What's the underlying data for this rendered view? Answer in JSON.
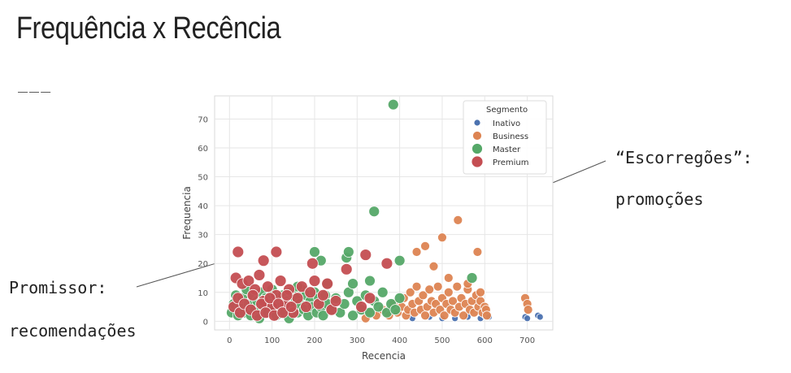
{
  "slide": {
    "title": "Frequência x Recência",
    "title_rule": "___"
  },
  "annotations": {
    "promissor_title": "Promissor:",
    "promissor_subtitle": "recomendações",
    "escorregoes_title": "“Escorregões”:",
    "escorregoes_subtitle": "promoções"
  },
  "colors": {
    "Inativo": "#4c72b0",
    "Business": "#dd8452",
    "Master": "#55a868",
    "Premium": "#c44e52",
    "plot_background": "#ffffff",
    "grid": "#e6e6e6"
  },
  "chart_data": {
    "type": "scatter",
    "title": "",
    "xlabel": "Recencia",
    "ylabel": "Frequencia",
    "xlim": [
      -35,
      760
    ],
    "ylim": [
      -3,
      78
    ],
    "xticks": [
      0,
      100,
      200,
      300,
      400,
      500,
      600,
      700
    ],
    "yticks": [
      0,
      10,
      20,
      30,
      40,
      50,
      60,
      70
    ],
    "grid": true,
    "legend": {
      "title": "Segmento",
      "placement": "top-right",
      "entries": [
        "Inativo",
        "Business",
        "Master",
        "Premium"
      ]
    },
    "series": [
      {
        "name": "Inativo",
        "points": [
          [
            430,
            1
          ],
          [
            470,
            1.5
          ],
          [
            500,
            1
          ],
          [
            530,
            1
          ],
          [
            560,
            1.5
          ],
          [
            590,
            1
          ],
          [
            600,
            2
          ],
          [
            610,
            1.5
          ],
          [
            695,
            1.5
          ],
          [
            700,
            1
          ],
          [
            725,
            2
          ],
          [
            730,
            1.5
          ]
        ]
      },
      {
        "name": "Business",
        "points": [
          [
            320,
            1
          ],
          [
            330,
            3
          ],
          [
            345,
            2
          ],
          [
            360,
            4
          ],
          [
            375,
            2
          ],
          [
            385,
            6
          ],
          [
            395,
            3
          ],
          [
            405,
            5
          ],
          [
            410,
            8
          ],
          [
            415,
            2
          ],
          [
            420,
            4
          ],
          [
            425,
            10
          ],
          [
            430,
            6
          ],
          [
            435,
            3
          ],
          [
            440,
            12
          ],
          [
            445,
            7
          ],
          [
            450,
            4
          ],
          [
            455,
            9
          ],
          [
            460,
            2
          ],
          [
            465,
            5
          ],
          [
            470,
            11
          ],
          [
            475,
            7
          ],
          [
            480,
            3
          ],
          [
            485,
            6
          ],
          [
            490,
            12
          ],
          [
            495,
            4
          ],
          [
            500,
            8
          ],
          [
            505,
            2
          ],
          [
            510,
            6
          ],
          [
            515,
            10
          ],
          [
            520,
            4
          ],
          [
            525,
            7
          ],
          [
            530,
            3
          ],
          [
            535,
            12
          ],
          [
            540,
            5
          ],
          [
            545,
            8
          ],
          [
            550,
            2
          ],
          [
            555,
            6
          ],
          [
            560,
            11
          ],
          [
            565,
            4
          ],
          [
            570,
            7
          ],
          [
            575,
            3
          ],
          [
            580,
            9
          ],
          [
            585,
            5
          ],
          [
            590,
            7
          ],
          [
            595,
            3
          ],
          [
            600,
            5
          ],
          [
            603,
            4
          ],
          [
            605,
            2
          ],
          [
            440,
            24
          ],
          [
            460,
            26
          ],
          [
            480,
            19
          ],
          [
            500,
            29
          ],
          [
            515,
            15
          ],
          [
            537,
            35
          ],
          [
            560,
            13
          ],
          [
            583,
            24
          ],
          [
            590,
            10
          ],
          [
            695,
            8
          ],
          [
            700,
            6
          ],
          [
            702,
            4
          ]
        ]
      },
      {
        "name": "Master",
        "points": [
          [
            5,
            3
          ],
          [
            10,
            6
          ],
          [
            15,
            9
          ],
          [
            20,
            2
          ],
          [
            25,
            5
          ],
          [
            30,
            8
          ],
          [
            35,
            3
          ],
          [
            40,
            11
          ],
          [
            45,
            6
          ],
          [
            50,
            2
          ],
          [
            55,
            9
          ],
          [
            60,
            4
          ],
          [
            65,
            7
          ],
          [
            70,
            1
          ],
          [
            75,
            10
          ],
          [
            80,
            5
          ],
          [
            85,
            8
          ],
          [
            90,
            3
          ],
          [
            95,
            6
          ],
          [
            100,
            11
          ],
          [
            105,
            4
          ],
          [
            110,
            2
          ],
          [
            115,
            8
          ],
          [
            120,
            5
          ],
          [
            125,
            9
          ],
          [
            130,
            3
          ],
          [
            135,
            7
          ],
          [
            140,
            1
          ],
          [
            145,
            10
          ],
          [
            150,
            5
          ],
          [
            155,
            8
          ],
          [
            160,
            3
          ],
          [
            165,
            6
          ],
          [
            170,
            11
          ],
          [
            175,
            4
          ],
          [
            180,
            9
          ],
          [
            185,
            2
          ],
          [
            190,
            7
          ],
          [
            195,
            5
          ],
          [
            200,
            10
          ],
          [
            205,
            3
          ],
          [
            210,
            8
          ],
          [
            215,
            5
          ],
          [
            220,
            2
          ],
          [
            225,
            9
          ],
          [
            230,
            6
          ],
          [
            240,
            4
          ],
          [
            250,
            8
          ],
          [
            260,
            3
          ],
          [
            270,
            6
          ],
          [
            280,
            10
          ],
          [
            290,
            2
          ],
          [
            300,
            7
          ],
          [
            310,
            4
          ],
          [
            320,
            9
          ],
          [
            330,
            3
          ],
          [
            340,
            7
          ],
          [
            350,
            5
          ],
          [
            360,
            10
          ],
          [
            370,
            3
          ],
          [
            380,
            6
          ],
          [
            390,
            4
          ],
          [
            400,
            8
          ],
          [
            160,
            12
          ],
          [
            200,
            24
          ],
          [
            215,
            21
          ],
          [
            275,
            22
          ],
          [
            280,
            24
          ],
          [
            340,
            38
          ],
          [
            385,
            75
          ],
          [
            400,
            21
          ],
          [
            330,
            14
          ],
          [
            570,
            15
          ],
          [
            230,
            13
          ],
          [
            290,
            13
          ]
        ]
      },
      {
        "name": "Premium",
        "points": [
          [
            20,
            24
          ],
          [
            110,
            24
          ],
          [
            80,
            21
          ],
          [
            195,
            20
          ],
          [
            320,
            23
          ],
          [
            370,
            20
          ],
          [
            275,
            18
          ],
          [
            15,
            15
          ],
          [
            30,
            13
          ],
          [
            45,
            14
          ],
          [
            60,
            11
          ],
          [
            70,
            16
          ],
          [
            80,
            7
          ],
          [
            90,
            12
          ],
          [
            100,
            5
          ],
          [
            110,
            9
          ],
          [
            120,
            14
          ],
          [
            130,
            6
          ],
          [
            140,
            11
          ],
          [
            150,
            3
          ],
          [
            160,
            8
          ],
          [
            170,
            12
          ],
          [
            180,
            5
          ],
          [
            190,
            10
          ],
          [
            200,
            14
          ],
          [
            210,
            6
          ],
          [
            220,
            9
          ],
          [
            230,
            13
          ],
          [
            240,
            4
          ],
          [
            250,
            7
          ],
          [
            10,
            5
          ],
          [
            20,
            8
          ],
          [
            25,
            3
          ],
          [
            35,
            6
          ],
          [
            50,
            4
          ],
          [
            55,
            9
          ],
          [
            65,
            2
          ],
          [
            75,
            6
          ],
          [
            85,
            3
          ],
          [
            95,
            8
          ],
          [
            105,
            2
          ],
          [
            115,
            6
          ],
          [
            125,
            3
          ],
          [
            135,
            9
          ],
          [
            145,
            5
          ],
          [
            330,
            8
          ],
          [
            310,
            5
          ]
        ]
      }
    ]
  }
}
